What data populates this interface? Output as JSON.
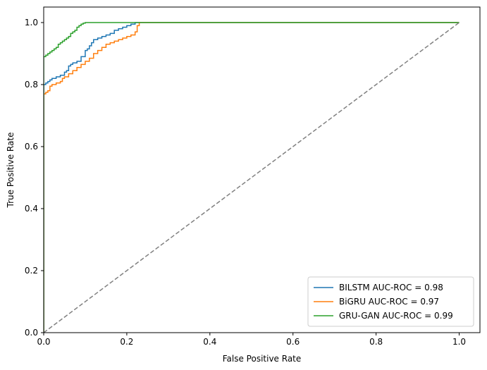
{
  "chart_data": {
    "type": "line",
    "title": "",
    "xlabel": "False Positive Rate",
    "ylabel": "True Positive Rate",
    "xlim": [
      0.0,
      1.05
    ],
    "ylim": [
      0.0,
      1.05
    ],
    "xticks": [
      0.0,
      0.2,
      0.4,
      0.6,
      0.8,
      1.0
    ],
    "yticks": [
      0.0,
      0.2,
      0.4,
      0.6,
      0.8,
      1.0
    ],
    "xtick_labels": [
      "0.0",
      "0.2",
      "0.4",
      "0.6",
      "0.8",
      "1.0"
    ],
    "ytick_labels": [
      "0.0",
      "0.2",
      "0.4",
      "0.6",
      "0.8",
      "1.0"
    ],
    "grid": false,
    "legend_position": "lower-right",
    "series": [
      {
        "name": "BILSTM AUC-ROC = 0.98",
        "color": "#1f77b4",
        "style": "step",
        "x": [
          0.0,
          0.0,
          0.005,
          0.01,
          0.015,
          0.02,
          0.03,
          0.04,
          0.05,
          0.055,
          0.06,
          0.065,
          0.07,
          0.08,
          0.09,
          0.1,
          0.105,
          0.11,
          0.115,
          0.12,
          0.13,
          0.14,
          0.15,
          0.16,
          0.17,
          0.18,
          0.19,
          0.2,
          0.21,
          0.22,
          1.0
        ],
        "y": [
          0.0,
          0.8,
          0.805,
          0.81,
          0.815,
          0.82,
          0.825,
          0.83,
          0.84,
          0.845,
          0.86,
          0.865,
          0.87,
          0.875,
          0.89,
          0.91,
          0.915,
          0.925,
          0.935,
          0.945,
          0.95,
          0.955,
          0.96,
          0.965,
          0.975,
          0.98,
          0.985,
          0.99,
          0.995,
          1.0,
          1.0
        ]
      },
      {
        "name": "BiGRU AUC-ROC = 0.97",
        "color": "#ff7f0e",
        "style": "step",
        "x": [
          0.0,
          0.0,
          0.005,
          0.01,
          0.015,
          0.02,
          0.03,
          0.04,
          0.045,
          0.05,
          0.06,
          0.07,
          0.08,
          0.09,
          0.1,
          0.11,
          0.12,
          0.13,
          0.14,
          0.15,
          0.16,
          0.17,
          0.18,
          0.19,
          0.2,
          0.21,
          0.22,
          0.225,
          0.23,
          1.0
        ],
        "y": [
          0.0,
          0.77,
          0.775,
          0.78,
          0.795,
          0.8,
          0.805,
          0.81,
          0.82,
          0.825,
          0.835,
          0.845,
          0.855,
          0.865,
          0.875,
          0.885,
          0.9,
          0.91,
          0.92,
          0.93,
          0.935,
          0.94,
          0.945,
          0.95,
          0.955,
          0.96,
          0.97,
          0.99,
          1.0,
          1.0
        ]
      },
      {
        "name": "GRU-GAN AUC-ROC = 0.99",
        "color": "#2ca02c",
        "style": "step",
        "x": [
          0.0,
          0.0,
          0.005,
          0.01,
          0.015,
          0.02,
          0.025,
          0.03,
          0.035,
          0.04,
          0.045,
          0.05,
          0.055,
          0.06,
          0.065,
          0.07,
          0.075,
          0.08,
          0.085,
          0.09,
          0.095,
          0.1,
          1.0
        ],
        "y": [
          0.0,
          0.89,
          0.895,
          0.9,
          0.905,
          0.91,
          0.915,
          0.92,
          0.93,
          0.935,
          0.94,
          0.945,
          0.95,
          0.955,
          0.965,
          0.97,
          0.975,
          0.985,
          0.99,
          0.995,
          0.998,
          1.0,
          1.0
        ]
      },
      {
        "name": "",
        "color": "#808080",
        "style": "dashed",
        "x": [
          0.0,
          1.0
        ],
        "y": [
          0.0,
          1.0
        ]
      }
    ]
  }
}
